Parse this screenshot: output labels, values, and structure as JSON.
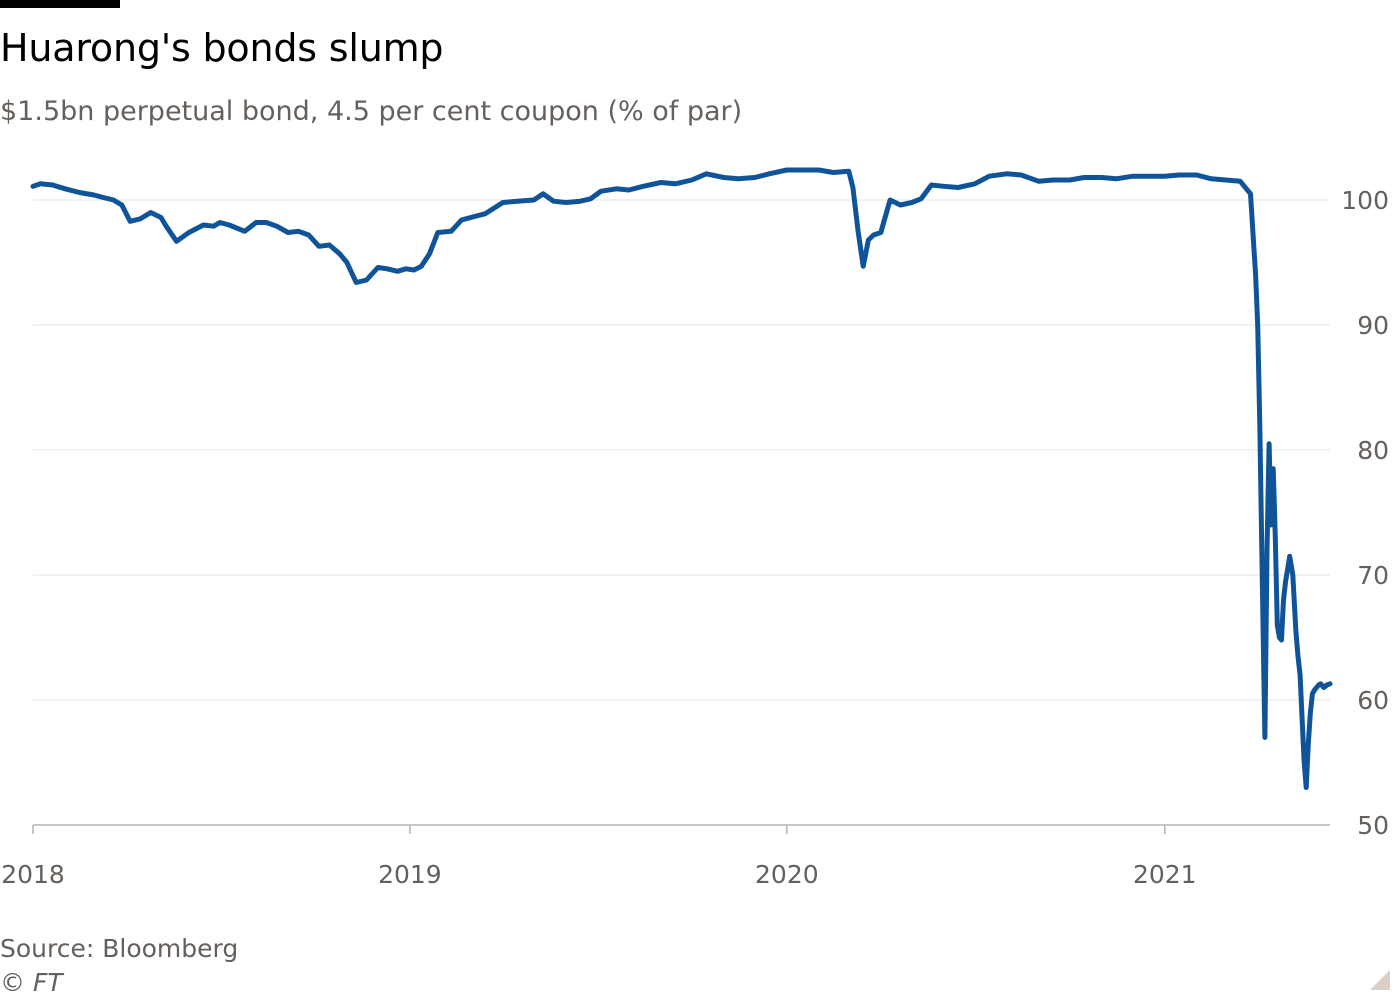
{
  "header": {
    "title": "Huarong's bonds slump",
    "subtitle": "$1.5bn perpetual bond, 4.5 per cent coupon (% of par)"
  },
  "footer": {
    "source": "Source: Bloomberg",
    "copyright": "© FT"
  },
  "colors": {
    "line": "#0f5499",
    "gridline": "#e6e6e6",
    "axis": "#b3b3b3",
    "tick_text": "#66605c"
  },
  "chart_data": {
    "type": "line",
    "title": "Huarong's bonds slump",
    "subtitle": "$1.5bn perpetual bond, 4.5 per cent coupon (% of par)",
    "xlabel": "",
    "ylabel": "",
    "xlim": [
      "2018-01-01",
      "2021-06-10"
    ],
    "ylim": [
      50,
      104
    ],
    "x_ticks": [
      "2018",
      "2019",
      "2020",
      "2021"
    ],
    "y_ticks": [
      50,
      60,
      70,
      80,
      90,
      100
    ],
    "grid": true,
    "y_axis_side": "right",
    "legend": "none",
    "series": [
      {
        "x": [
          "2018-01-01",
          "2018-01-08",
          "2018-01-20",
          "2018-02-01",
          "2018-02-15",
          "2018-03-01",
          "2018-03-10",
          "2018-03-20",
          "2018-03-28",
          "2018-04-05",
          "2018-04-15",
          "2018-04-25",
          "2018-05-05",
          "2018-05-10",
          "2018-05-20",
          "2018-06-01",
          "2018-06-15",
          "2018-06-25",
          "2018-07-01",
          "2018-07-10",
          "2018-07-25",
          "2018-08-05",
          "2018-08-15",
          "2018-08-25",
          "2018-09-05",
          "2018-09-15",
          "2018-09-25",
          "2018-10-05",
          "2018-10-15",
          "2018-10-25",
          "2018-11-01",
          "2018-11-10",
          "2018-11-20",
          "2018-12-01",
          "2018-12-10",
          "2018-12-20",
          "2018-12-28",
          "2019-01-05",
          "2019-01-12",
          "2019-01-20",
          "2019-01-28",
          "2019-02-10",
          "2019-02-20",
          "2019-03-01",
          "2019-03-15",
          "2019-04-01",
          "2019-04-15",
          "2019-05-01",
          "2019-05-10",
          "2019-05-20",
          "2019-06-01",
          "2019-06-15",
          "2019-06-25",
          "2019-07-05",
          "2019-07-20",
          "2019-08-01",
          "2019-08-15",
          "2019-09-01",
          "2019-09-15",
          "2019-10-01",
          "2019-10-15",
          "2019-11-01",
          "2019-11-15",
          "2019-12-01",
          "2019-12-15",
          "2020-01-01",
          "2020-01-15",
          "2020-02-01",
          "2020-02-15",
          "2020-03-01",
          "2020-03-05",
          "2020-03-10",
          "2020-03-15",
          "2020-03-20",
          "2020-03-25",
          "2020-04-01",
          "2020-04-10",
          "2020-04-20",
          "2020-05-01",
          "2020-05-10",
          "2020-05-20",
          "2020-06-01",
          "2020-06-15",
          "2020-07-01",
          "2020-07-15",
          "2020-08-01",
          "2020-08-15",
          "2020-09-01",
          "2020-09-15",
          "2020-10-01",
          "2020-10-15",
          "2020-11-01",
          "2020-11-15",
          "2020-12-01",
          "2020-12-15",
          "2021-01-01",
          "2021-01-15",
          "2021-02-01",
          "2021-02-15",
          "2021-03-01",
          "2021-03-15",
          "2021-03-25",
          "2021-03-30",
          "2021-04-01",
          "2021-04-03",
          "2021-04-05",
          "2021-04-08",
          "2021-04-10",
          "2021-04-12",
          "2021-04-14",
          "2021-04-16",
          "2021-04-18",
          "2021-04-20",
          "2021-04-22",
          "2021-04-24",
          "2021-04-26",
          "2021-04-28",
          "2021-04-30",
          "2021-05-02",
          "2021-05-05",
          "2021-05-08",
          "2021-05-10",
          "2021-05-12",
          "2021-05-14",
          "2021-05-16",
          "2021-05-18",
          "2021-05-20",
          "2021-05-22",
          "2021-05-24",
          "2021-05-26",
          "2021-05-28",
          "2021-05-30",
          "2021-06-01",
          "2021-06-04",
          "2021-06-07",
          "2021-06-10"
        ],
        "y": [
          101.1,
          101.3,
          101.2,
          100.9,
          100.6,
          100.4,
          100.2,
          100.0,
          99.6,
          98.3,
          98.5,
          99.0,
          98.6,
          97.9,
          96.7,
          97.4,
          98.0,
          97.9,
          98.2,
          98.0,
          97.5,
          98.2,
          98.2,
          97.9,
          97.4,
          97.5,
          97.2,
          96.3,
          96.4,
          95.7,
          95.0,
          93.4,
          93.6,
          94.6,
          94.5,
          94.3,
          94.5,
          94.4,
          94.7,
          95.7,
          97.4,
          97.5,
          98.4,
          98.6,
          98.9,
          99.8,
          99.9,
          100.0,
          100.5,
          99.9,
          99.8,
          99.9,
          100.1,
          100.7,
          100.9,
          100.8,
          101.1,
          101.4,
          101.3,
          101.6,
          102.1,
          101.8,
          101.7,
          101.8,
          102.1,
          102.4,
          102.4,
          102.4,
          102.2,
          102.3,
          101.0,
          97.5,
          94.7,
          96.8,
          97.2,
          97.4,
          100.0,
          99.6,
          99.8,
          100.1,
          101.2,
          101.1,
          101.0,
          101.3,
          101.9,
          102.1,
          102.0,
          101.5,
          101.6,
          101.6,
          101.8,
          101.8,
          101.7,
          101.9,
          101.9,
          101.9,
          102.0,
          102.0,
          101.7,
          101.6,
          101.5,
          100.5,
          94.0,
          90.0,
          82.0,
          72.0,
          57.0,
          72.0,
          80.5,
          74.0,
          78.5,
          73.0,
          66.0,
          65.0,
          64.8,
          68.0,
          69.5,
          70.5,
          71.5,
          70.0,
          65.5,
          63.5,
          62.0,
          58.5,
          55.0,
          53.0,
          56.5,
          59.0,
          60.5,
          60.8,
          61.0,
          61.2,
          61.3,
          61.0,
          61.2,
          61.3
        ]
      }
    ]
  }
}
